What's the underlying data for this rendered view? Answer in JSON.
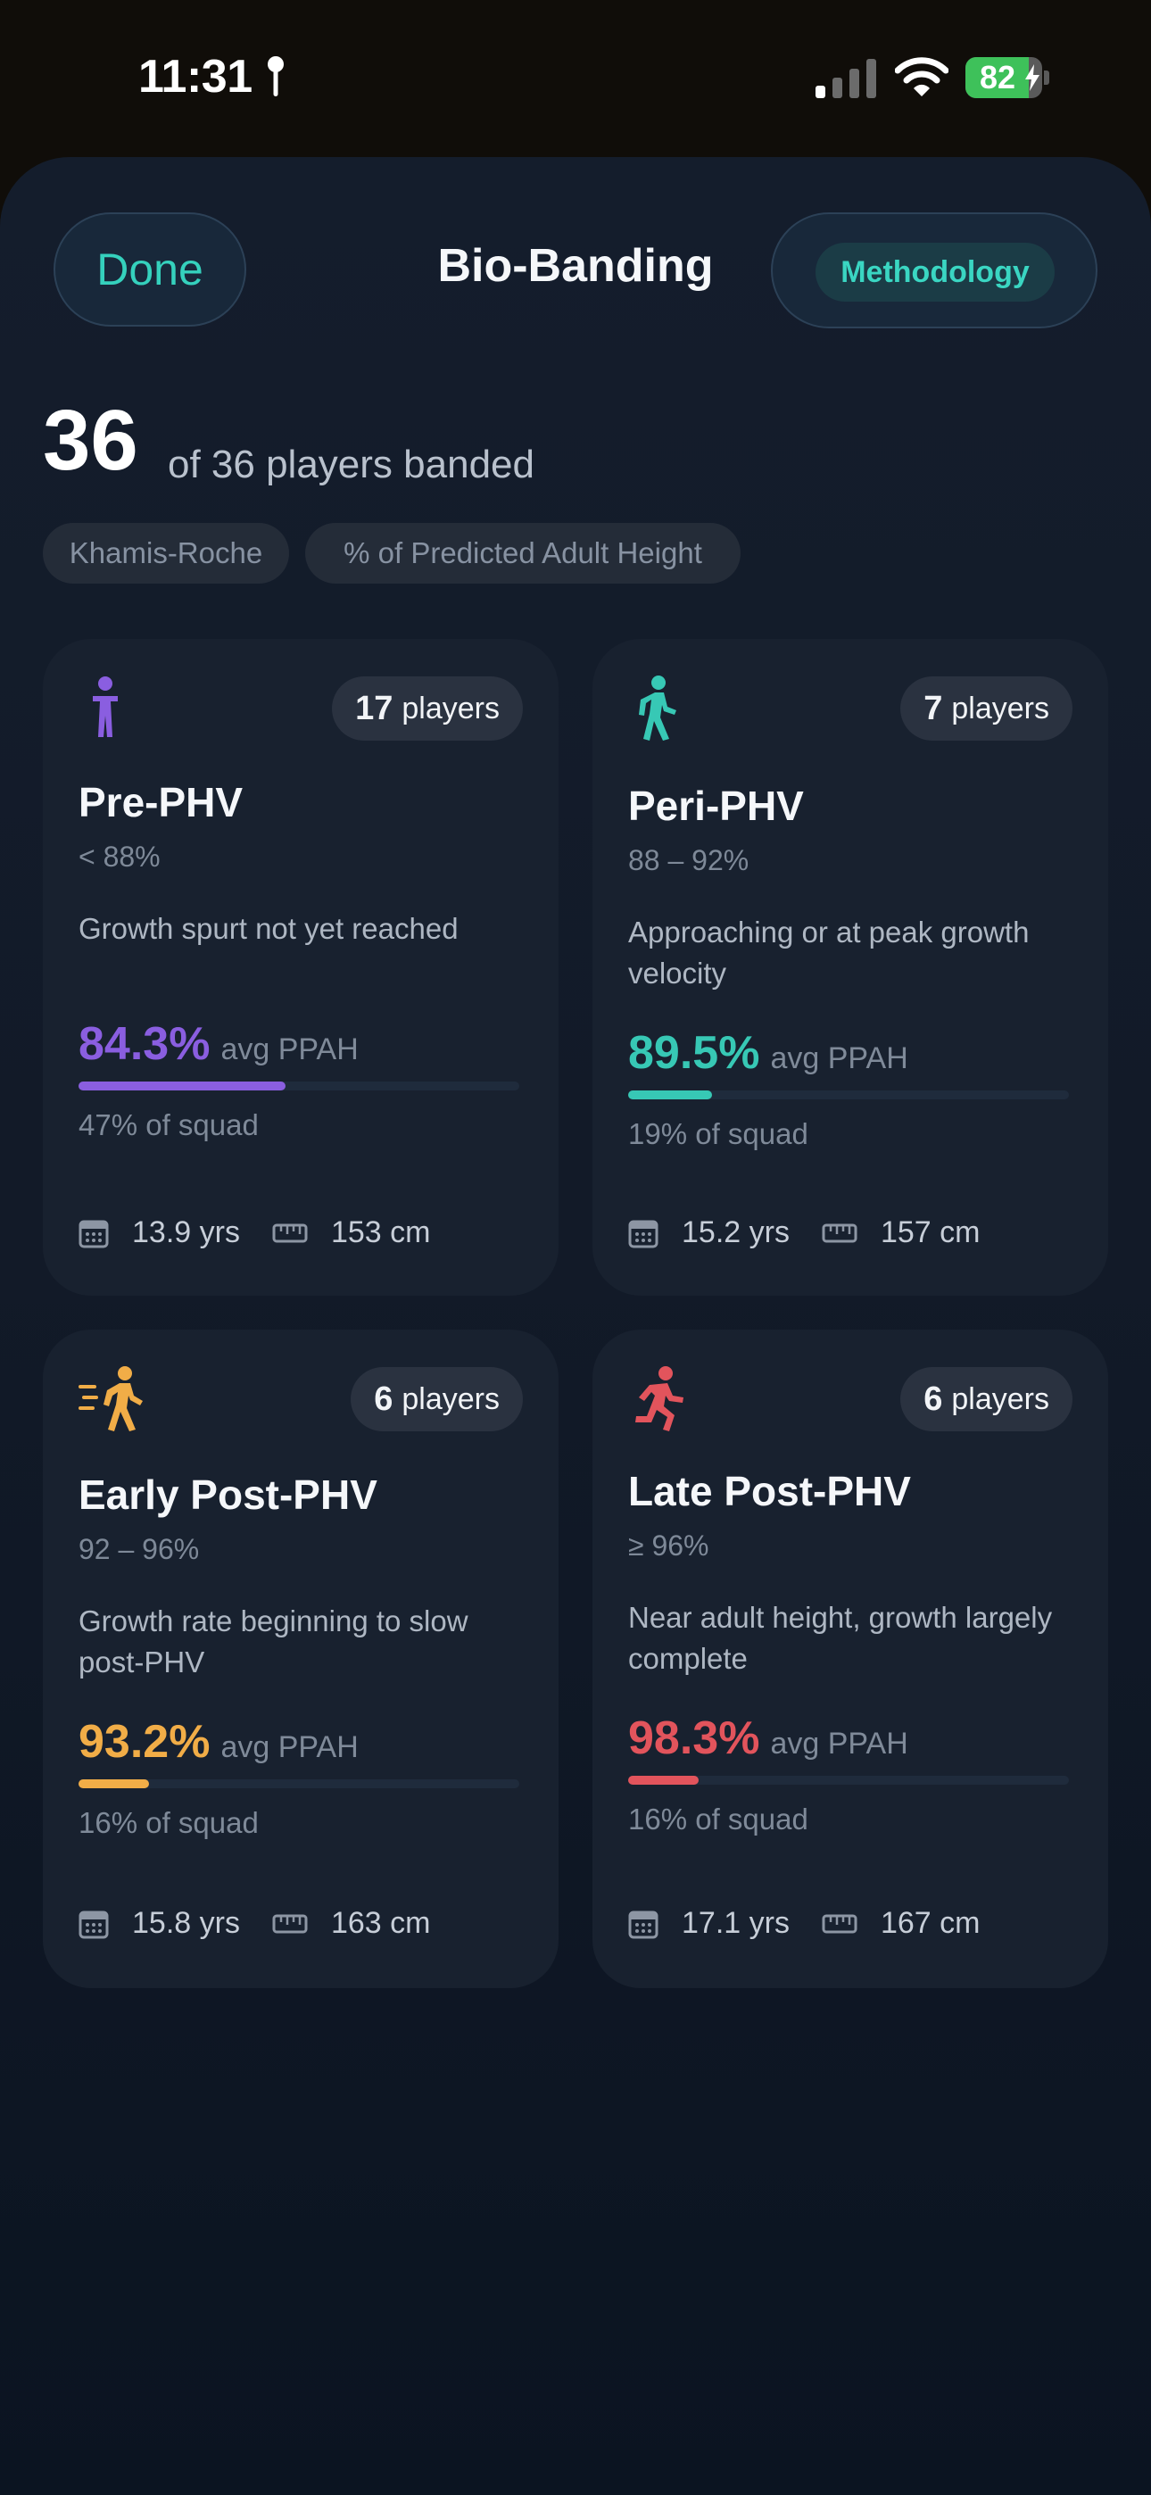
{
  "status_bar": {
    "time": "11:31",
    "battery": "82",
    "battery_level": 0.82,
    "icons": [
      "location-pin-icon",
      "cellular-signal-icon",
      "wifi-icon",
      "battery-charging-icon"
    ]
  },
  "nav": {
    "done_label": "Done",
    "title": "Bio-Banding",
    "methodology_label": "Methodology"
  },
  "summary": {
    "count": "36",
    "text": "of 36 players banded",
    "tags": [
      "Khamis-Roche",
      "% of Predicted Adult Height"
    ]
  },
  "colors": {
    "accent": "#35d1bd",
    "pre": "#8a5ee0",
    "peri": "#37c8b5",
    "early": "#f1ad47",
    "late": "#e2545c"
  },
  "bands": [
    {
      "icon": "standing-person-icon",
      "players": "17",
      "players_label": "players",
      "title": "Pre-PHV",
      "range": "< 88%",
      "description": "Growth spurt not yet reached",
      "avg": "84.3%",
      "avg_label": "avg PPAH",
      "squad_fraction": 0.47,
      "squad": "47% of squad",
      "age": "13.9 yrs",
      "height": "153 cm",
      "color": "#8a5ee0"
    },
    {
      "icon": "walking-person-icon",
      "players": "7",
      "players_label": "players",
      "title": "Peri-PHV",
      "range": "88 – 92%",
      "description": "Approaching or at peak growth velocity",
      "avg": "89.5%",
      "avg_label": "avg PPAH",
      "squad_fraction": 0.19,
      "squad": "19% of squad",
      "age": "15.2 yrs",
      "height": "157 cm",
      "color": "#37c8b5"
    },
    {
      "icon": "fast-walking-person-icon",
      "players": "6",
      "players_label": "players",
      "title": "Early Post-PHV",
      "range": "92 – 96%",
      "description": "Growth rate beginning to slow post-PHV",
      "avg": "93.2%",
      "avg_label": "avg PPAH",
      "squad_fraction": 0.16,
      "squad": "16% of squad",
      "age": "15.8 yrs",
      "height": "163 cm",
      "color": "#f1ad47"
    },
    {
      "icon": "running-person-icon",
      "players": "6",
      "players_label": "players",
      "title": "Late Post-PHV",
      "range": "≥ 96%",
      "description": "Near adult height, growth largely complete",
      "avg": "98.3%",
      "avg_label": "avg PPAH",
      "squad_fraction": 0.16,
      "squad": "16% of squad",
      "age": "17.1 yrs",
      "height": "167 cm",
      "color": "#e2545c"
    }
  ]
}
